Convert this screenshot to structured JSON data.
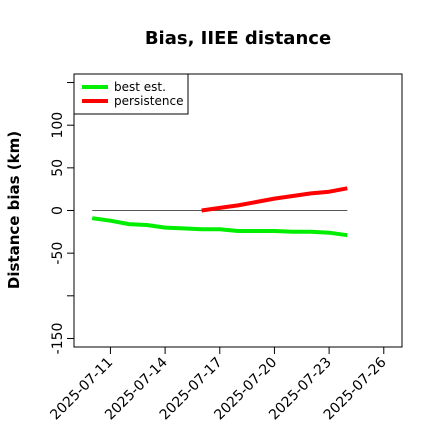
{
  "chart_data": {
    "type": "line",
    "title": "Bias, IIEE distance",
    "xlabel": "",
    "ylabel": "Distance bias (km)",
    "x_type": "date",
    "xlim": [
      "2025-07-09",
      "2025-07-27"
    ],
    "ylim": [
      -160,
      160
    ],
    "x_ticks": [
      "2025-07-11",
      "2025-07-14",
      "2025-07-17",
      "2025-07-20",
      "2025-07-23",
      "2025-07-26"
    ],
    "y_ticks": [
      -150,
      -100,
      -50,
      0,
      50,
      100,
      150
    ],
    "y_tick_labels": [
      "-150",
      "",
      "-50",
      "0",
      "50",
      "100",
      ""
    ],
    "grid": false,
    "legend_position": "top-left",
    "reference_line": {
      "y": 0,
      "x_start": "2025-07-10",
      "x_end": "2025-07-24",
      "color": "#555555"
    },
    "series": [
      {
        "name": "best est.",
        "color": "#00ee00",
        "x": [
          "2025-07-10",
          "2025-07-11",
          "2025-07-12",
          "2025-07-13",
          "2025-07-14",
          "2025-07-15",
          "2025-07-16",
          "2025-07-17",
          "2025-07-18",
          "2025-07-19",
          "2025-07-20",
          "2025-07-21",
          "2025-07-22",
          "2025-07-23",
          "2025-07-24"
        ],
        "y": [
          -9,
          -12,
          -16,
          -17,
          -20,
          -21,
          -22,
          -22,
          -24,
          -24,
          -24,
          -25,
          -25,
          -26,
          -29
        ]
      },
      {
        "name": "persistence",
        "color": "#ff0000",
        "x": [
          "2025-07-16",
          "2025-07-17",
          "2025-07-18",
          "2025-07-19",
          "2025-07-20",
          "2025-07-21",
          "2025-07-22",
          "2025-07-23",
          "2025-07-24"
        ],
        "y": [
          0,
          3,
          6,
          10,
          14,
          17,
          20,
          22,
          26
        ]
      }
    ]
  }
}
